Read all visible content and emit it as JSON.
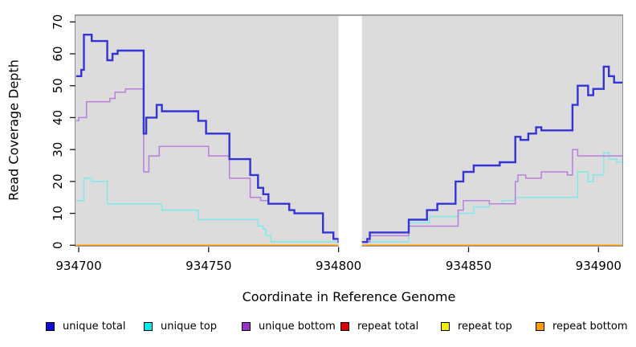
{
  "chart_data": {
    "type": "line",
    "subtype": "step",
    "title": "",
    "xlabel": "Coordinate in Reference Genome",
    "ylabel": "Read Coverage Depth",
    "xlim": [
      934698.8,
      934909
    ],
    "ylim": [
      0,
      70
    ],
    "xticks": [
      934700,
      934750,
      934800,
      934850,
      934900
    ],
    "yticks": [
      0,
      10,
      20,
      30,
      40,
      50,
      60,
      70
    ],
    "grid": false,
    "legend_position": "bottom",
    "panel_bg": "#dcdcdc",
    "panel_border": "#8f8f8f",
    "no_data_gap_x": [
      934800,
      934809
    ],
    "x_end": 934909,
    "series": [
      {
        "name": "unique total",
        "legend_color": "#0d0dd8",
        "line_color": "#3434d4",
        "line_width": 2.4,
        "draw_order": 5,
        "steps": [
          [
            934699,
            53
          ],
          [
            934701,
            55
          ],
          [
            934702,
            66
          ],
          [
            934705,
            64
          ],
          [
            934711,
            58
          ],
          [
            934713,
            60
          ],
          [
            934715,
            61
          ],
          [
            934725,
            35
          ],
          [
            934726,
            40
          ],
          [
            934730,
            44
          ],
          [
            934732,
            42
          ],
          [
            934746,
            39
          ],
          [
            934749,
            35
          ],
          [
            934758,
            27
          ],
          [
            934766,
            22
          ],
          [
            934769,
            18
          ],
          [
            934771,
            16
          ],
          [
            934773,
            13
          ],
          [
            934781,
            11
          ],
          [
            934783,
            10
          ],
          [
            934794,
            4
          ],
          [
            934798,
            2
          ],
          [
            934800,
            1
          ],
          [
            934809,
            1
          ],
          [
            934811,
            2
          ],
          [
            934812,
            4
          ],
          [
            934827,
            8
          ],
          [
            934834,
            11
          ],
          [
            934838,
            13
          ],
          [
            934845,
            20
          ],
          [
            934848,
            23
          ],
          [
            934852,
            25
          ],
          [
            934862,
            26
          ],
          [
            934868,
            34
          ],
          [
            934870,
            33
          ],
          [
            934873,
            35
          ],
          [
            934876,
            37
          ],
          [
            934878,
            36
          ],
          [
            934890,
            44
          ],
          [
            934892,
            50
          ],
          [
            934896,
            47
          ],
          [
            934898,
            49
          ],
          [
            934902,
            56
          ],
          [
            934904,
            53
          ],
          [
            934906,
            51
          ]
        ]
      },
      {
        "name": "unique top",
        "legend_color": "#00eeee",
        "line_color": "#7fe9e9",
        "line_width": 1.5,
        "draw_order": 3,
        "steps": [
          [
            934699,
            14
          ],
          [
            934702,
            21
          ],
          [
            934705,
            20
          ],
          [
            934711,
            13
          ],
          [
            934732,
            11
          ],
          [
            934746,
            8
          ],
          [
            934769,
            6
          ],
          [
            934771,
            5
          ],
          [
            934772,
            3
          ],
          [
            934774,
            1
          ],
          [
            934827,
            7
          ],
          [
            934835,
            9
          ],
          [
            934846,
            10
          ],
          [
            934852,
            12
          ],
          [
            934858,
            13
          ],
          [
            934863,
            14
          ],
          [
            934868,
            15
          ],
          [
            934892,
            23
          ],
          [
            934896,
            20
          ],
          [
            934898,
            22
          ],
          [
            934902,
            29
          ],
          [
            934904,
            27
          ],
          [
            934907,
            26
          ]
        ]
      },
      {
        "name": "unique bottom",
        "legend_color": "#9932cc",
        "line_color": "#b87fdc",
        "line_width": 1.5,
        "draw_order": 4,
        "steps": [
          [
            934699,
            39
          ],
          [
            934700,
            40
          ],
          [
            934703,
            45
          ],
          [
            934712,
            46
          ],
          [
            934714,
            48
          ],
          [
            934718,
            49
          ],
          [
            934725,
            23
          ],
          [
            934727,
            28
          ],
          [
            934731,
            31
          ],
          [
            934750,
            28
          ],
          [
            934758,
            21
          ],
          [
            934766,
            15
          ],
          [
            934770,
            14
          ],
          [
            934773,
            13
          ],
          [
            934781,
            11
          ],
          [
            934783,
            10
          ],
          [
            934794,
            4
          ],
          [
            934798,
            2
          ],
          [
            934800,
            1
          ],
          [
            934809,
            1
          ],
          [
            934812,
            3
          ],
          [
            934827,
            6
          ],
          [
            934846,
            11
          ],
          [
            934848,
            14
          ],
          [
            934858,
            13
          ],
          [
            934868,
            20
          ],
          [
            934869,
            22
          ],
          [
            934872,
            21
          ],
          [
            934878,
            23
          ],
          [
            934888,
            22
          ],
          [
            934890,
            30
          ],
          [
            934892,
            28
          ]
        ]
      },
      {
        "name": "repeat total",
        "legend_color": "#dd0000",
        "line_color": "#dd0000",
        "line_width": 1.5,
        "draw_order": 1,
        "steps": [
          [
            934699,
            0
          ]
        ]
      },
      {
        "name": "repeat top",
        "legend_color": "#f2f200",
        "line_color": "#f2f200",
        "line_width": 1.5,
        "draw_order": 2,
        "steps": [
          [
            934699,
            0
          ]
        ]
      },
      {
        "name": "repeat bottom",
        "legend_color": "#ff9d00",
        "line_color": "#ff9b00",
        "line_width": 1.7,
        "draw_order": 6,
        "steps": [
          [
            934699,
            0
          ]
        ]
      }
    ]
  }
}
